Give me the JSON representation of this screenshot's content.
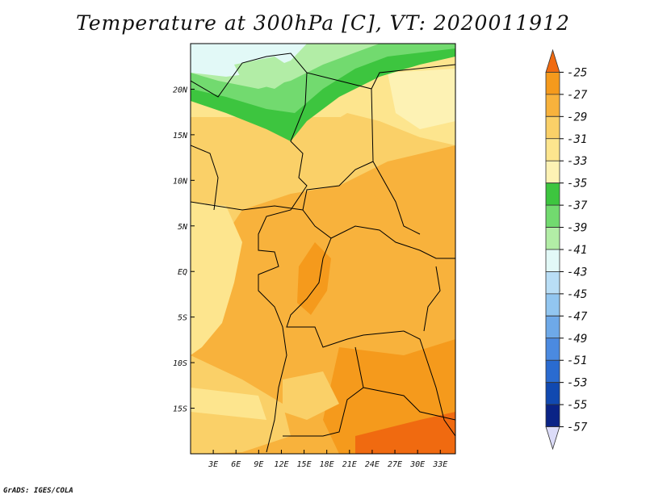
{
  "title": "Temperature at 300hPa [C], VT: 2020011912",
  "footer": "GrADS: IGES/COLA",
  "map": {
    "lat_range": [
      -20,
      25
    ],
    "lon_range": [
      0,
      35
    ],
    "lat_ticks": [
      {
        "value": 20,
        "label": "20N"
      },
      {
        "value": 15,
        "label": "15N"
      },
      {
        "value": 10,
        "label": "10N"
      },
      {
        "value": 5,
        "label": "5N"
      },
      {
        "value": 0,
        "label": "EQ"
      },
      {
        "value": -5,
        "label": "5S"
      },
      {
        "value": -10,
        "label": "10S"
      },
      {
        "value": -15,
        "label": "15S"
      }
    ],
    "lon_ticks": [
      {
        "value": 3,
        "label": "3E"
      },
      {
        "value": 6,
        "label": "6E"
      },
      {
        "value": 9,
        "label": "9E"
      },
      {
        "value": 12,
        "label": "12E"
      },
      {
        "value": 15,
        "label": "15E"
      },
      {
        "value": 18,
        "label": "18E"
      },
      {
        "value": 21,
        "label": "21E"
      },
      {
        "value": 24,
        "label": "24E"
      },
      {
        "value": 27,
        "label": "27E"
      },
      {
        "value": 30,
        "label": "30E"
      },
      {
        "value": 33,
        "label": "33E"
      }
    ]
  },
  "colorbar": {
    "levels": [
      "-25",
      "-27",
      "-29",
      "-31",
      "-33",
      "-35",
      "-37",
      "-39",
      "-41",
      "-43",
      "-45",
      "-47",
      "-49",
      "-51",
      "-53",
      "-55",
      "-57"
    ],
    "colors": [
      "#f06a10",
      "#f59a1c",
      "#f8b23c",
      "#fad068",
      "#fde58e",
      "#fdf2b4",
      "#3dc53f",
      "#72da6f",
      "#b2eda6",
      "#e2f9f7",
      "#b9def6",
      "#92c6f0",
      "#6ea9e8",
      "#4b8ae0",
      "#2a6bd0",
      "#1149b0",
      "#0a2386",
      "#dcdcf8"
    ]
  }
}
